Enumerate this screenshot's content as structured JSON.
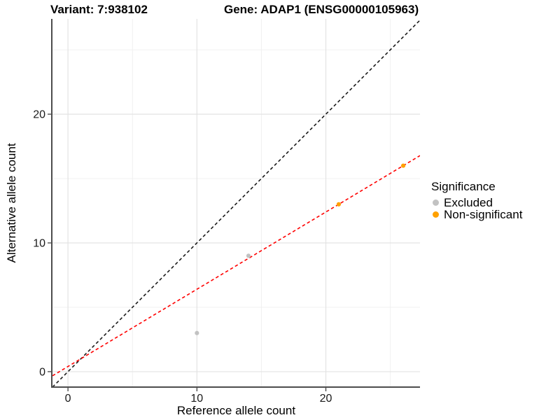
{
  "title": {
    "variant": "Variant: 7:938102",
    "gene": "Gene: ADAP1 (ENSG00000105963)"
  },
  "chart_data": {
    "type": "scatter",
    "xlabel": "Reference allele count",
    "ylabel": "Alternative allele count",
    "xlim": [
      -1.2,
      27.3
    ],
    "ylim": [
      -1.2,
      27.4
    ],
    "x_major_ticks": [
      0,
      10,
      20
    ],
    "y_major_ticks": [
      0,
      10,
      20
    ],
    "x_minor_ticks": [
      5,
      15,
      25
    ],
    "y_minor_ticks": [
      5,
      15,
      25
    ],
    "grid": "major+minor",
    "legend_position": "right",
    "series": [
      {
        "name": "Excluded",
        "color": "#C2C2C2",
        "points": [
          [
            10,
            3
          ],
          [
            14,
            9
          ]
        ]
      },
      {
        "name": "Non-significant",
        "color": "#FFA100",
        "points": [
          [
            21,
            13
          ],
          [
            26,
            16
          ]
        ]
      }
    ],
    "lines": [
      {
        "name": "identity-line",
        "slope": 1,
        "intercept": 0,
        "color": "#1A1A1A",
        "style": "dashed"
      },
      {
        "name": "fit-line",
        "slope": 0.6,
        "intercept": 0.4,
        "color": "#FF0000",
        "style": "dashed"
      }
    ]
  },
  "legend": {
    "title": "Significance",
    "items": [
      {
        "label": "Excluded",
        "color": "#C2C2C2"
      },
      {
        "label": "Non-significant",
        "color": "#FFA100"
      }
    ]
  },
  "colors": {
    "excluded": "#C2C2C2",
    "non_significant": "#FFA100",
    "identity_line": "#1A1A1A",
    "fit_line": "#FF0000",
    "grid_major": "#E3E3E3",
    "grid_minor": "#EFEFEF",
    "axis_line": "#4D4D4D"
  }
}
